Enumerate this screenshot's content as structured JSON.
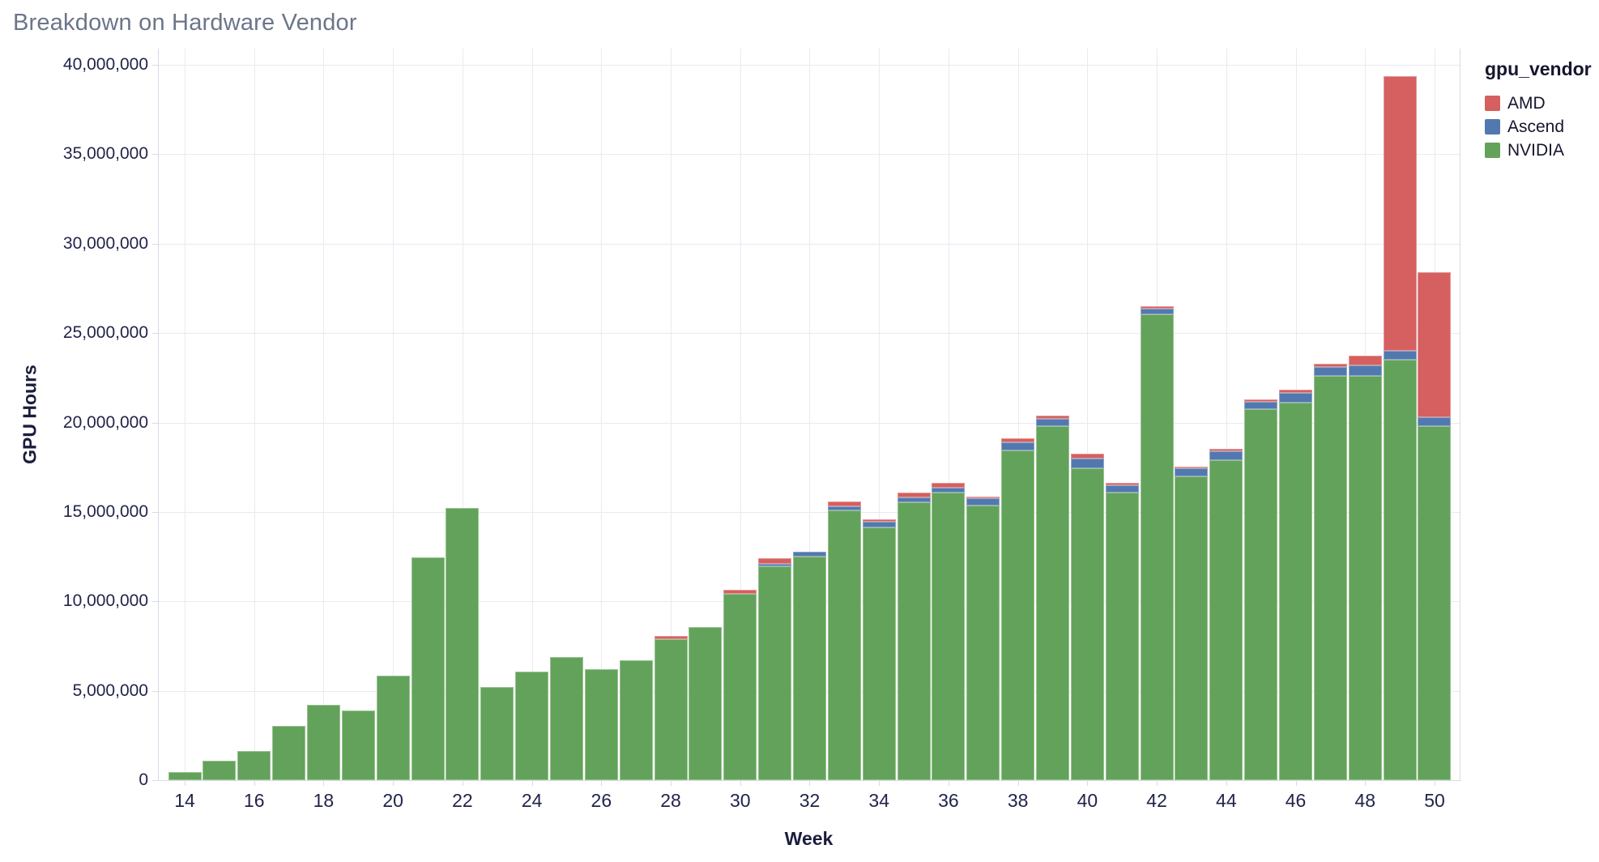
{
  "title": "Breakdown on Hardware Vendor",
  "legend": {
    "title": "gpu_vendor",
    "items": [
      {
        "label": "AMD",
        "color": "#d65f5f"
      },
      {
        "label": "Ascend",
        "color": "#5279af"
      },
      {
        "label": "NVIDIA",
        "color": "#63a25a"
      }
    ]
  },
  "chart_data": {
    "type": "bar",
    "stacked": true,
    "title": "Breakdown on Hardware Vendor",
    "xlabel": "Week",
    "ylabel": "GPU Hours",
    "grid": true,
    "legend_title": "gpu_vendor",
    "legend_position": "outside-top-right",
    "ylim": [
      0,
      40000000
    ],
    "y_ticks": [
      0,
      5000000,
      10000000,
      15000000,
      20000000,
      25000000,
      30000000,
      35000000,
      40000000
    ],
    "y_tick_labels": [
      "0",
      "5,000,000",
      "10,000,000",
      "15,000,000",
      "20,000,000",
      "25,000,000",
      "30,000,000",
      "35,000,000",
      "40,000,000"
    ],
    "x": [
      14,
      15,
      16,
      17,
      18,
      19,
      20,
      21,
      22,
      23,
      24,
      25,
      26,
      27,
      28,
      29,
      30,
      31,
      32,
      33,
      34,
      35,
      36,
      37,
      38,
      39,
      40,
      41,
      42,
      43,
      44,
      45,
      46,
      47,
      48,
      49,
      50
    ],
    "x_labeled_ticks": [
      14,
      16,
      18,
      20,
      22,
      24,
      26,
      28,
      30,
      32,
      34,
      36,
      38,
      40,
      42,
      44,
      46,
      48,
      50
    ],
    "stack_order_bottom_to_top": [
      "NVIDIA",
      "Ascend",
      "AMD"
    ],
    "series": [
      {
        "name": "NVIDIA",
        "color": "#63a25a",
        "values": [
          450000,
          1100000,
          1650000,
          3050000,
          4200000,
          3900000,
          5850000,
          12450000,
          15200000,
          5200000,
          6050000,
          6900000,
          6200000,
          6700000,
          7900000,
          8550000,
          10400000,
          11950000,
          12500000,
          15100000,
          14150000,
          15550000,
          16100000,
          15350000,
          18450000,
          19800000,
          17450000,
          16100000,
          26050000,
          17000000,
          17900000,
          20750000,
          21100000,
          22600000,
          22600000,
          23500000,
          19800000
        ]
      },
      {
        "name": "Ascend",
        "color": "#5279af",
        "values": [
          0,
          0,
          0,
          0,
          0,
          0,
          0,
          0,
          0,
          0,
          0,
          0,
          0,
          0,
          0,
          0,
          0,
          150000,
          270000,
          200000,
          300000,
          260000,
          270000,
          400000,
          450000,
          420000,
          550000,
          390000,
          300000,
          450000,
          500000,
          400000,
          550000,
          500000,
          600000,
          500000,
          500000
        ]
      },
      {
        "name": "AMD",
        "color": "#d65f5f",
        "values": [
          0,
          0,
          0,
          0,
          0,
          0,
          0,
          0,
          0,
          0,
          0,
          0,
          0,
          0,
          150000,
          0,
          250000,
          300000,
          0,
          300000,
          120000,
          260000,
          270000,
          120000,
          200000,
          150000,
          270000,
          150000,
          150000,
          100000,
          150000,
          150000,
          200000,
          200000,
          550000,
          15350000,
          8100000
        ]
      }
    ]
  }
}
